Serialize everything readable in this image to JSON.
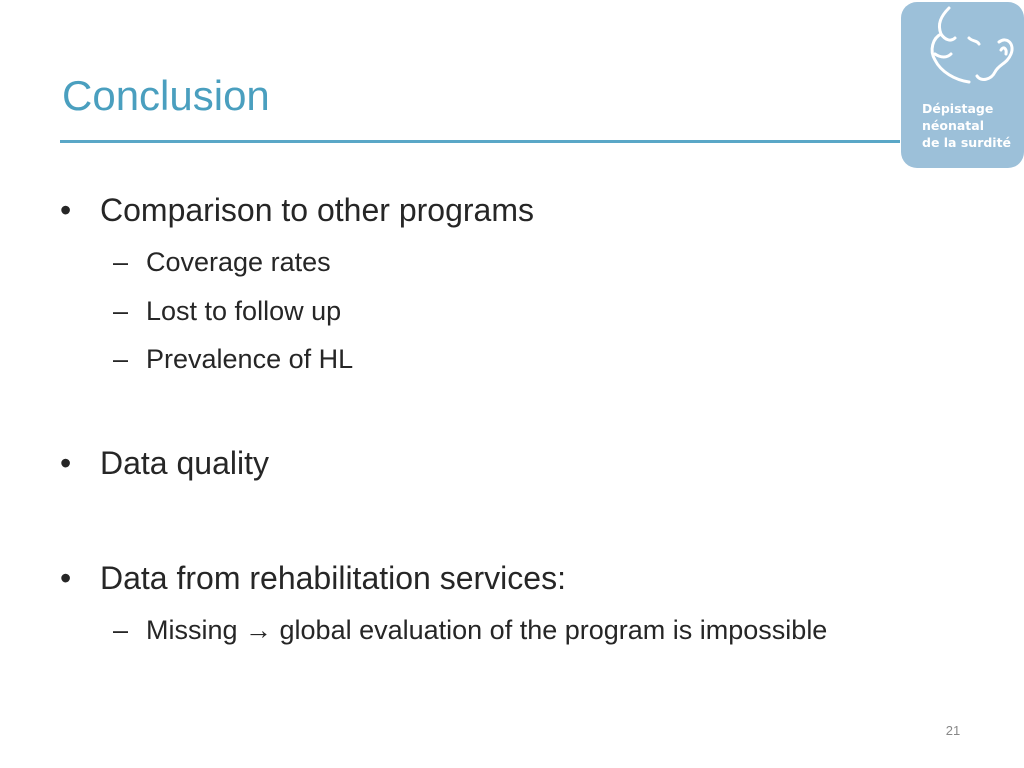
{
  "slide": {
    "title": "Conclusion",
    "page_number": "21"
  },
  "logo": {
    "line1": "Dépistage",
    "line2": "néonatal",
    "line3": "de la surdité"
  },
  "bullets": [
    {
      "text": "Comparison to other programs",
      "sub": [
        "Coverage rates",
        "Lost to follow up",
        "Prevalence of HL"
      ]
    },
    {
      "text": "Data quality",
      "sub": []
    },
    {
      "text": "Data from rehabilitation services:",
      "sub": [
        "Missing → global evaluation of the program is impossible"
      ]
    }
  ],
  "glyphs": {
    "bullet": "•",
    "dash": "–"
  }
}
